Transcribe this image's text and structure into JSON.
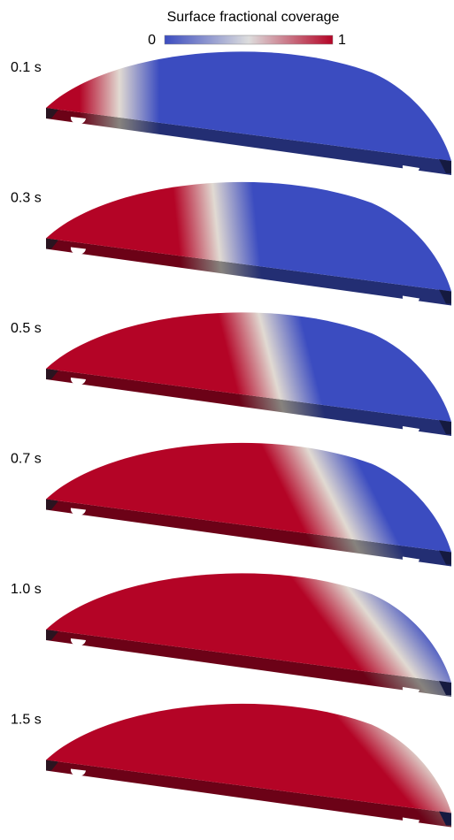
{
  "colorbar": {
    "title": "Surface fractional coverage",
    "min_label": "0",
    "max_label": "1"
  },
  "panels": [
    {
      "label": "0.1 s"
    },
    {
      "label": "0.3 s"
    },
    {
      "label": "0.5 s"
    },
    {
      "label": "0.7 s"
    },
    {
      "label": "1.0 s"
    },
    {
      "label": "1.5 s"
    }
  ]
}
